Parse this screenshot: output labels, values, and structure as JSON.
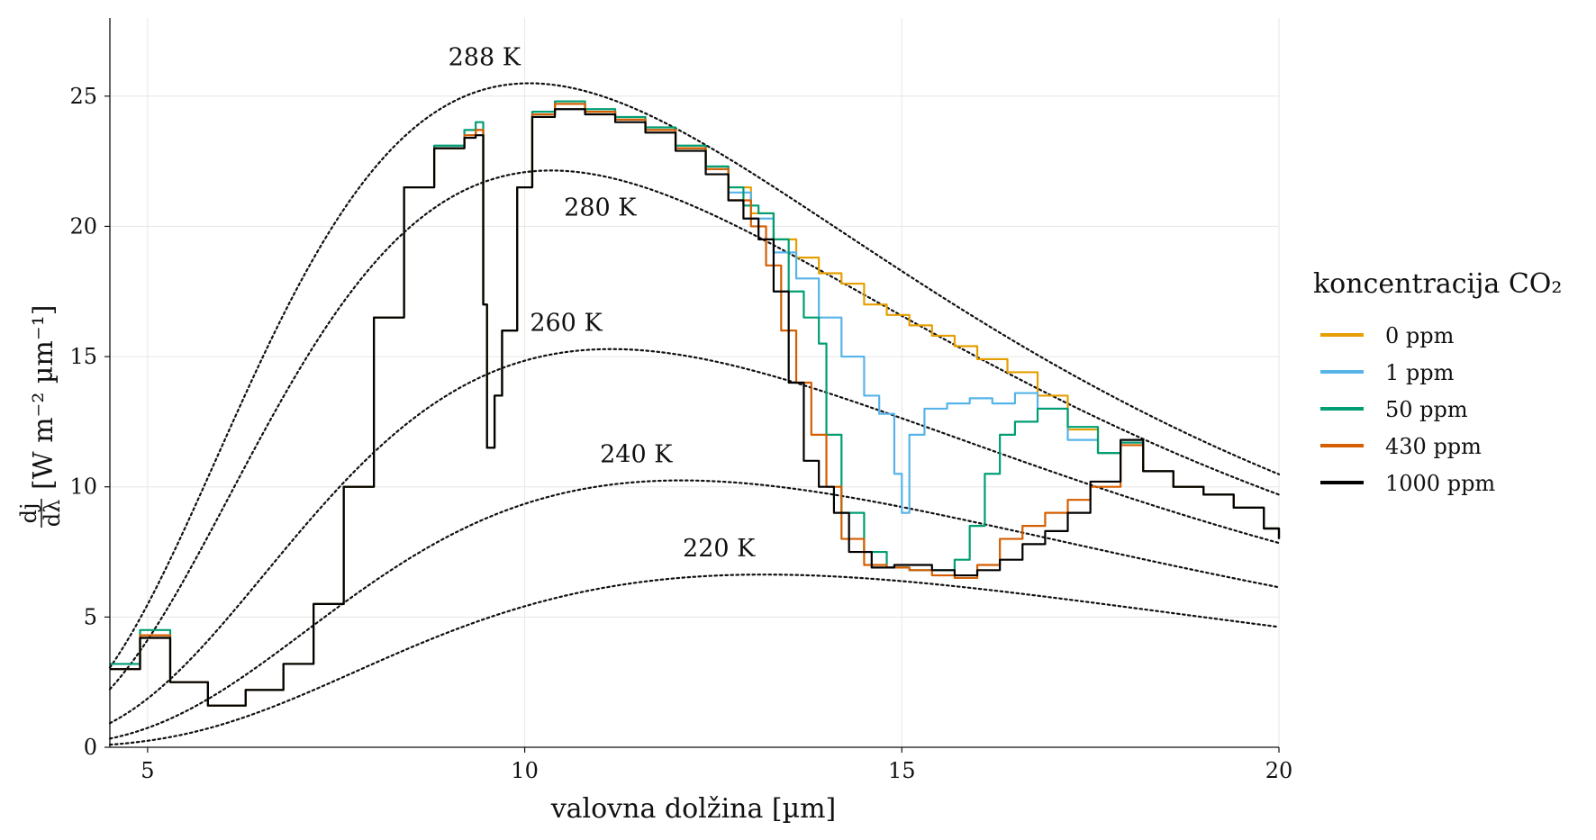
{
  "chart_data": {
    "type": "line",
    "xlabel": "valovna dolžina [µm]",
    "ylabel_fraction_num": "dj",
    "ylabel_fraction_den": "dλ",
    "ylabel_units": "[W m⁻² µm⁻¹]",
    "xlim": [
      4.5,
      20
    ],
    "ylim": [
      0,
      28
    ],
    "x_ticks": [
      5,
      10,
      15,
      20
    ],
    "y_ticks": [
      0,
      5,
      10,
      15,
      20,
      25
    ],
    "grid": true,
    "legend_title": "koncentracija CO₂",
    "legend_position": "right",
    "planck_curves": [
      {
        "label": "288 K",
        "temperature": 288
      },
      {
        "label": "280 K",
        "temperature": 280
      },
      {
        "label": "260 K",
        "temperature": 260
      },
      {
        "label": "240 K",
        "temperature": 240
      },
      {
        "label": "220 K",
        "temperature": 220
      }
    ],
    "series": [
      {
        "name": "0 ppm",
        "color": "#E69F00",
        "points": [
          [
            4.5,
            3.0
          ],
          [
            4.9,
            4.2
          ],
          [
            5.3,
            2.5
          ],
          [
            5.8,
            1.6
          ],
          [
            6.3,
            2.2
          ],
          [
            6.8,
            3.2
          ],
          [
            7.2,
            5.5
          ],
          [
            7.6,
            10.0
          ],
          [
            8.0,
            16.5
          ],
          [
            8.4,
            21.5
          ],
          [
            8.8,
            23.0
          ],
          [
            9.2,
            23.5
          ],
          [
            9.35,
            23.7
          ],
          [
            9.45,
            17.0
          ],
          [
            9.5,
            11.5
          ],
          [
            9.6,
            13.5
          ],
          [
            9.7,
            16.0
          ],
          [
            9.9,
            21.5
          ],
          [
            10.1,
            24.3
          ],
          [
            10.4,
            24.7
          ],
          [
            10.8,
            24.4
          ],
          [
            11.2,
            24.1
          ],
          [
            11.6,
            23.7
          ],
          [
            12.0,
            23.0
          ],
          [
            12.4,
            22.2
          ],
          [
            12.7,
            21.5
          ],
          [
            13.0,
            20.5
          ],
          [
            13.3,
            19.5
          ],
          [
            13.6,
            18.8
          ],
          [
            13.9,
            18.2
          ],
          [
            14.2,
            17.8
          ],
          [
            14.5,
            17.0
          ],
          [
            14.8,
            16.6
          ],
          [
            15.1,
            16.2
          ],
          [
            15.4,
            15.8
          ],
          [
            15.7,
            15.4
          ],
          [
            16.0,
            14.9
          ],
          [
            16.4,
            14.4
          ],
          [
            16.8,
            13.5
          ],
          [
            17.2,
            12.2
          ],
          [
            17.6,
            11.3
          ],
          [
            17.9,
            11.7
          ],
          [
            18.2,
            10.6
          ],
          [
            18.6,
            10.0
          ],
          [
            19.0,
            9.7
          ],
          [
            19.4,
            9.2
          ],
          [
            19.8,
            8.4
          ],
          [
            20.0,
            8.0
          ]
        ]
      },
      {
        "name": "1 ppm",
        "color": "#56B4E9",
        "points": [
          [
            4.5,
            3.0
          ],
          [
            4.9,
            4.2
          ],
          [
            5.3,
            2.5
          ],
          [
            5.8,
            1.6
          ],
          [
            6.3,
            2.2
          ],
          [
            6.8,
            3.2
          ],
          [
            7.2,
            5.5
          ],
          [
            7.6,
            10.0
          ],
          [
            8.0,
            16.5
          ],
          [
            8.4,
            21.5
          ],
          [
            8.8,
            23.0
          ],
          [
            9.2,
            23.5
          ],
          [
            9.35,
            23.7
          ],
          [
            9.45,
            17.0
          ],
          [
            9.5,
            11.5
          ],
          [
            9.6,
            13.5
          ],
          [
            9.7,
            16.0
          ],
          [
            9.9,
            21.5
          ],
          [
            10.1,
            24.3
          ],
          [
            10.4,
            24.7
          ],
          [
            10.8,
            24.4
          ],
          [
            11.2,
            24.1
          ],
          [
            11.6,
            23.7
          ],
          [
            12.0,
            23.0
          ],
          [
            12.4,
            22.2
          ],
          [
            12.7,
            21.3
          ],
          [
            13.0,
            20.3
          ],
          [
            13.3,
            19.0
          ],
          [
            13.6,
            18.0
          ],
          [
            13.9,
            16.5
          ],
          [
            14.2,
            15.0
          ],
          [
            14.5,
            13.5
          ],
          [
            14.7,
            12.8
          ],
          [
            14.9,
            10.5
          ],
          [
            15.0,
            9.0
          ],
          [
            15.1,
            12.0
          ],
          [
            15.3,
            13.0
          ],
          [
            15.6,
            13.2
          ],
          [
            15.9,
            13.4
          ],
          [
            16.2,
            13.2
          ],
          [
            16.5,
            13.6
          ],
          [
            16.8,
            13.0
          ],
          [
            17.2,
            11.8
          ],
          [
            17.6,
            11.3
          ],
          [
            17.9,
            11.7
          ],
          [
            18.2,
            10.6
          ],
          [
            18.6,
            10.0
          ],
          [
            19.0,
            9.7
          ],
          [
            19.4,
            9.2
          ],
          [
            19.8,
            8.4
          ],
          [
            20.0,
            8.0
          ]
        ]
      },
      {
        "name": "50 ppm",
        "color": "#009E73",
        "points": [
          [
            4.5,
            3.2
          ],
          [
            4.9,
            4.5
          ],
          [
            5.3,
            2.5
          ],
          [
            5.8,
            1.6
          ],
          [
            6.3,
            2.2
          ],
          [
            6.8,
            3.2
          ],
          [
            7.2,
            5.5
          ],
          [
            7.6,
            10.0
          ],
          [
            8.0,
            16.5
          ],
          [
            8.4,
            21.5
          ],
          [
            8.8,
            23.1
          ],
          [
            9.2,
            23.7
          ],
          [
            9.35,
            24.0
          ],
          [
            9.45,
            17.0
          ],
          [
            9.5,
            11.5
          ],
          [
            9.6,
            13.5
          ],
          [
            9.7,
            16.0
          ],
          [
            9.9,
            21.5
          ],
          [
            10.1,
            24.4
          ],
          [
            10.4,
            24.8
          ],
          [
            10.8,
            24.5
          ],
          [
            11.2,
            24.2
          ],
          [
            11.6,
            23.8
          ],
          [
            12.0,
            23.1
          ],
          [
            12.4,
            22.3
          ],
          [
            12.7,
            21.5
          ],
          [
            12.9,
            20.8
          ],
          [
            13.1,
            20.5
          ],
          [
            13.3,
            19.5
          ],
          [
            13.5,
            17.5
          ],
          [
            13.7,
            16.5
          ],
          [
            13.9,
            15.5
          ],
          [
            14.0,
            12.0
          ],
          [
            14.2,
            9.0
          ],
          [
            14.5,
            7.5
          ],
          [
            14.8,
            6.9
          ],
          [
            15.1,
            6.8
          ],
          [
            15.4,
            6.8
          ],
          [
            15.7,
            7.2
          ],
          [
            15.9,
            8.5
          ],
          [
            16.1,
            10.5
          ],
          [
            16.3,
            12.0
          ],
          [
            16.5,
            12.5
          ],
          [
            16.8,
            13.0
          ],
          [
            17.2,
            12.3
          ],
          [
            17.6,
            11.3
          ],
          [
            17.9,
            11.7
          ],
          [
            18.2,
            10.6
          ],
          [
            18.6,
            10.0
          ],
          [
            19.0,
            9.7
          ],
          [
            19.4,
            9.2
          ],
          [
            19.8,
            8.4
          ],
          [
            20.0,
            8.0
          ]
        ]
      },
      {
        "name": "430 ppm",
        "color": "#D55E00",
        "points": [
          [
            4.5,
            3.0
          ],
          [
            4.9,
            4.3
          ],
          [
            5.3,
            2.5
          ],
          [
            5.8,
            1.6
          ],
          [
            6.3,
            2.2
          ],
          [
            6.8,
            3.2
          ],
          [
            7.2,
            5.5
          ],
          [
            7.6,
            10.0
          ],
          [
            8.0,
            16.5
          ],
          [
            8.4,
            21.5
          ],
          [
            8.8,
            23.0
          ],
          [
            9.2,
            23.5
          ],
          [
            9.35,
            23.7
          ],
          [
            9.45,
            17.0
          ],
          [
            9.5,
            11.5
          ],
          [
            9.6,
            13.5
          ],
          [
            9.7,
            16.0
          ],
          [
            9.9,
            21.5
          ],
          [
            10.1,
            24.3
          ],
          [
            10.4,
            24.7
          ],
          [
            10.8,
            24.4
          ],
          [
            11.2,
            24.1
          ],
          [
            11.6,
            23.7
          ],
          [
            12.0,
            23.0
          ],
          [
            12.4,
            22.2
          ],
          [
            12.7,
            21.0
          ],
          [
            13.0,
            20.0
          ],
          [
            13.2,
            18.5
          ],
          [
            13.4,
            16.0
          ],
          [
            13.6,
            14.0
          ],
          [
            13.8,
            12.0
          ],
          [
            14.0,
            10.0
          ],
          [
            14.2,
            8.0
          ],
          [
            14.5,
            7.0
          ],
          [
            14.8,
            6.9
          ],
          [
            15.1,
            6.8
          ],
          [
            15.4,
            6.6
          ],
          [
            15.7,
            6.5
          ],
          [
            16.0,
            7.0
          ],
          [
            16.3,
            8.0
          ],
          [
            16.6,
            8.5
          ],
          [
            16.9,
            9.0
          ],
          [
            17.2,
            9.5
          ],
          [
            17.5,
            10.0
          ],
          [
            17.9,
            11.6
          ],
          [
            18.2,
            10.6
          ],
          [
            18.6,
            10.0
          ],
          [
            19.0,
            9.7
          ],
          [
            19.4,
            9.2
          ],
          [
            19.8,
            8.4
          ],
          [
            20.0,
            8.0
          ]
        ]
      },
      {
        "name": "1000 ppm",
        "color": "#000000",
        "points": [
          [
            4.5,
            3.0
          ],
          [
            4.9,
            4.2
          ],
          [
            5.3,
            2.5
          ],
          [
            5.8,
            1.6
          ],
          [
            6.3,
            2.2
          ],
          [
            6.8,
            3.2
          ],
          [
            7.2,
            5.5
          ],
          [
            7.6,
            10.0
          ],
          [
            8.0,
            16.5
          ],
          [
            8.4,
            21.5
          ],
          [
            8.8,
            23.0
          ],
          [
            9.2,
            23.4
          ],
          [
            9.35,
            23.5
          ],
          [
            9.45,
            17.0
          ],
          [
            9.5,
            11.5
          ],
          [
            9.6,
            13.5
          ],
          [
            9.7,
            16.0
          ],
          [
            9.9,
            21.5
          ],
          [
            10.1,
            24.2
          ],
          [
            10.4,
            24.5
          ],
          [
            10.8,
            24.3
          ],
          [
            11.2,
            24.0
          ],
          [
            11.6,
            23.6
          ],
          [
            12.0,
            22.9
          ],
          [
            12.4,
            22.0
          ],
          [
            12.7,
            21.0
          ],
          [
            12.9,
            20.3
          ],
          [
            13.1,
            19.5
          ],
          [
            13.3,
            17.5
          ],
          [
            13.5,
            14.0
          ],
          [
            13.7,
            11.0
          ],
          [
            13.9,
            10.0
          ],
          [
            14.1,
            9.0
          ],
          [
            14.3,
            7.5
          ],
          [
            14.6,
            6.9
          ],
          [
            14.9,
            7.0
          ],
          [
            15.1,
            7.0
          ],
          [
            15.4,
            6.8
          ],
          [
            15.7,
            6.6
          ],
          [
            16.0,
            6.8
          ],
          [
            16.3,
            7.2
          ],
          [
            16.6,
            7.8
          ],
          [
            16.9,
            8.3
          ],
          [
            17.2,
            9.0
          ],
          [
            17.5,
            10.2
          ],
          [
            17.9,
            11.8
          ],
          [
            18.2,
            10.6
          ],
          [
            18.6,
            10.0
          ],
          [
            19.0,
            9.7
          ],
          [
            19.4,
            9.2
          ],
          [
            19.8,
            8.4
          ],
          [
            20.0,
            8.0
          ]
        ]
      }
    ]
  }
}
